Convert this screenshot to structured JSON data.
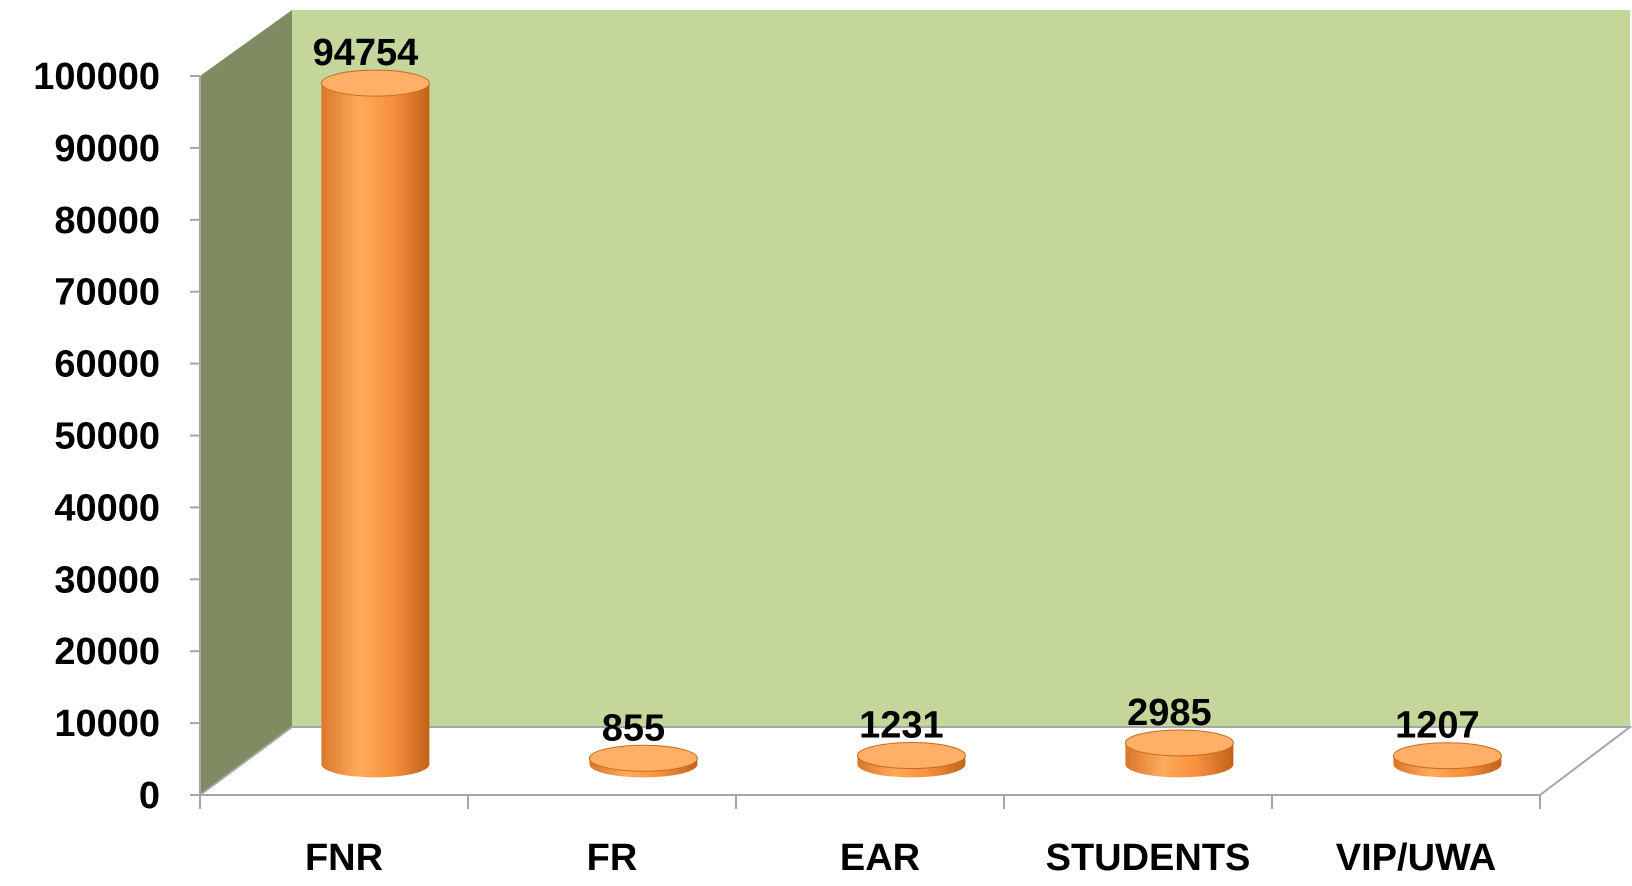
{
  "chart_data": {
    "type": "bar",
    "style": "3d-cylinder",
    "categories": [
      "FNR",
      "FR",
      "EAR",
      "STUDENTS",
      "VIP/UWA"
    ],
    "values": [
      94754,
      855,
      1231,
      2985,
      1207
    ],
    "data_labels": [
      "94754",
      "855",
      "1231",
      "2985",
      "1207"
    ],
    "y_ticks": [
      "0",
      "10000",
      "20000",
      "30000",
      "40000",
      "50000",
      "60000",
      "70000",
      "80000",
      "90000",
      "100000"
    ],
    "ylim": [
      0,
      100000
    ],
    "title": "",
    "xlabel": "",
    "ylabel": "",
    "grid": false,
    "legend": "none",
    "colors": {
      "bar": "#f79646",
      "bar_light": "#ffb066",
      "bar_dark": "#c96a1c",
      "back_wall": "#c4d79b",
      "side_wall": "#7f8c61",
      "floor": "#ffffff",
      "axis": "#a6a6a6"
    }
  }
}
